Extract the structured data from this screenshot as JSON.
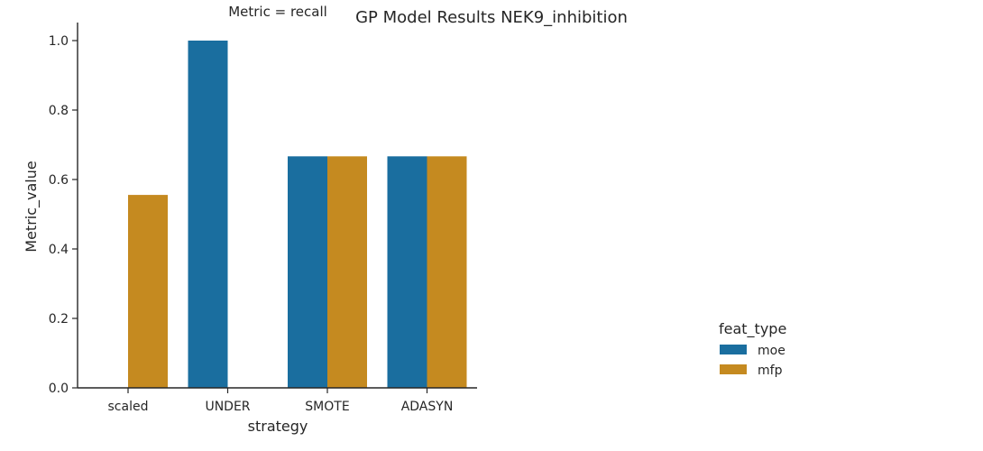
{
  "chart_data": {
    "type": "bar",
    "title": "GP Model Results NEK9_inhibition",
    "facet_title": "Metric = recall",
    "xlabel": "strategy",
    "ylabel": "Metric_value",
    "ylim": [
      0,
      1.05
    ],
    "yticks": [
      "0.0",
      "0.2",
      "0.4",
      "0.6",
      "0.8",
      "1.0"
    ],
    "categories": [
      "scaled",
      "UNDER",
      "SMOTE",
      "ADASYN"
    ],
    "series": [
      {
        "name": "moe",
        "color": "#1a6e9f",
        "values": [
          0.0,
          1.0,
          0.6667,
          0.6667
        ]
      },
      {
        "name": "mfp",
        "color": "#c58a20",
        "values": [
          0.5556,
          0.0,
          0.6667,
          0.6667
        ]
      }
    ],
    "legend": {
      "title": "feat_type",
      "position": "right"
    },
    "grid": false
  }
}
